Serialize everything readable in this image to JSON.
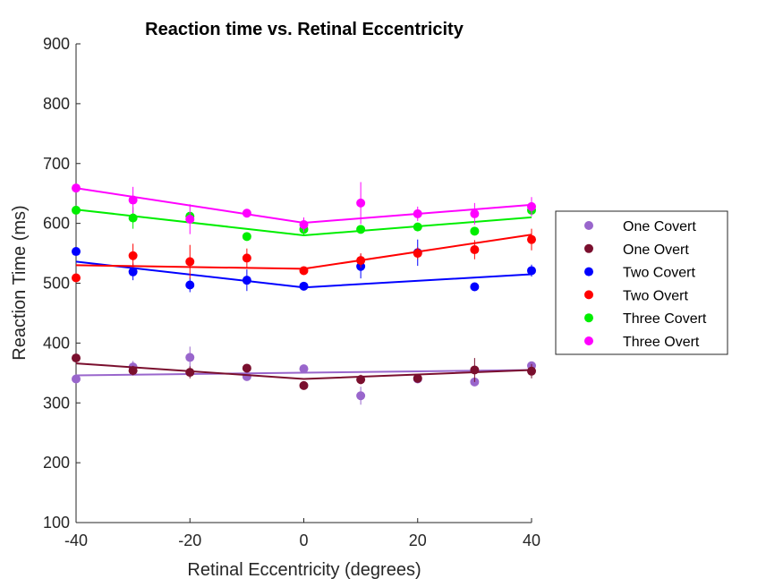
{
  "chart_data": {
    "type": "scatter",
    "title": "Reaction time vs. Retinal Eccentricity",
    "xlabel": "Retinal Eccentricity (degrees)",
    "ylabel": "Reaction Time (ms)",
    "xlim": [
      -40,
      40
    ],
    "ylim": [
      100,
      900
    ],
    "xticks": [
      -40,
      -20,
      0,
      20,
      40
    ],
    "yticks": [
      100,
      200,
      300,
      400,
      500,
      600,
      700,
      800,
      900
    ],
    "grid": false,
    "legend_position": "right",
    "x": [
      -40,
      -30,
      -20,
      -10,
      0,
      10,
      20,
      30,
      40
    ],
    "series": [
      {
        "name": "One Covert",
        "color": "#9966cc",
        "values": [
          340,
          360,
          376,
          344,
          357,
          312,
          340,
          335,
          362
        ],
        "errors": [
          5,
          10,
          18,
          5,
          5,
          15,
          5,
          5,
          5
        ],
        "fit": [
          [
            -40,
            346
          ],
          [
            40,
            355
          ]
        ]
      },
      {
        "name": "One Overt",
        "color": "#7a0f2e",
        "values": [
          375,
          354,
          351,
          358,
          329,
          339,
          341,
          355,
          353
        ],
        "errors": [
          5,
          8,
          10,
          6,
          6,
          8,
          6,
          20,
          12
        ],
        "fit": [
          [
            -40,
            366
          ],
          [
            0,
            340
          ],
          [
            40,
            355
          ]
        ]
      },
      {
        "name": "Two Covert",
        "color": "#0000ff",
        "values": [
          553,
          519,
          497,
          505,
          495,
          528,
          551,
          494,
          521
        ],
        "errors": [
          5,
          14,
          12,
          18,
          5,
          20,
          22,
          5,
          10
        ],
        "fit": [
          [
            -40,
            536
          ],
          [
            0,
            493
          ],
          [
            40,
            515
          ]
        ]
      },
      {
        "name": "Two Overt",
        "color": "#ff0000",
        "values": [
          509,
          546,
          536,
          542,
          521,
          538,
          550,
          556,
          573
        ],
        "errors": [
          5,
          20,
          28,
          16,
          5,
          12,
          10,
          16,
          18
        ],
        "fit": [
          [
            -40,
            530
          ],
          [
            0,
            524
          ],
          [
            40,
            581
          ]
        ]
      },
      {
        "name": "Three Covert",
        "color": "#00ee00",
        "values": [
          622,
          609,
          612,
          578,
          590,
          590,
          594,
          587,
          622
        ],
        "errors": [
          5,
          18,
          5,
          5,
          10,
          5,
          5,
          5,
          5
        ],
        "fit": [
          [
            -40,
            623
          ],
          [
            0,
            580
          ],
          [
            40,
            610
          ]
        ]
      },
      {
        "name": "Three Overt",
        "color": "#ff00ff",
        "values": [
          659,
          639,
          607,
          617,
          598,
          634,
          616,
          616,
          628
        ],
        "errors": [
          5,
          22,
          25,
          5,
          12,
          35,
          12,
          18,
          16
        ],
        "fit": [
          [
            -40,
            659
          ],
          [
            0,
            601
          ],
          [
            40,
            631
          ]
        ]
      }
    ]
  }
}
